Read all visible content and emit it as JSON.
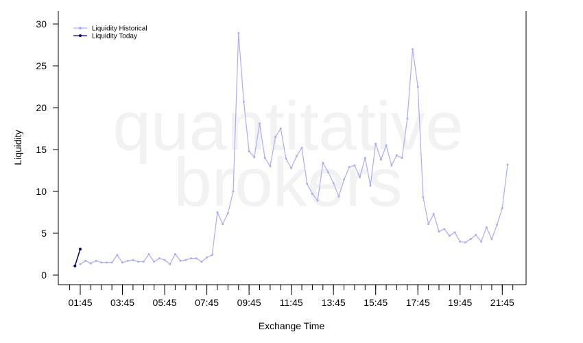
{
  "chart_data": {
    "type": "line",
    "watermark": [
      "quantitative",
      "brokers"
    ],
    "x_label": "Exchange Time",
    "y_label": "Liquidity",
    "categories": [
      "01:30",
      "01:45",
      "02:00",
      "02:15",
      "02:30",
      "02:45",
      "03:00",
      "03:15",
      "03:30",
      "03:45",
      "04:00",
      "04:15",
      "04:30",
      "04:45",
      "05:00",
      "05:15",
      "05:30",
      "05:45",
      "06:00",
      "06:15",
      "06:30",
      "06:45",
      "07:00",
      "07:15",
      "07:30",
      "07:45",
      "08:00",
      "08:15",
      "08:30",
      "08:45",
      "09:00",
      "09:15",
      "09:30",
      "09:45",
      "10:00",
      "10:15",
      "10:30",
      "10:45",
      "11:00",
      "11:15",
      "11:30",
      "11:45",
      "12:00",
      "12:15",
      "12:30",
      "12:45",
      "13:00",
      "13:15",
      "13:30",
      "13:45",
      "14:00",
      "14:15",
      "14:30",
      "14:45",
      "15:00",
      "15:15",
      "15:30",
      "15:45",
      "16:00",
      "16:15",
      "16:30",
      "16:45",
      "17:00",
      "17:15",
      "17:30",
      "17:45",
      "18:00",
      "18:15",
      "18:30",
      "18:45",
      "19:00",
      "19:15",
      "19:30",
      "19:45",
      "20:00",
      "20:15",
      "20:30",
      "20:45",
      "21:00",
      "21:15",
      "21:30",
      "21:45",
      "22:00"
    ],
    "series": [
      {
        "name": "Liquidity Historical",
        "color": "#aaaaff",
        "values": [
          null,
          1.3,
          1.7,
          1.4,
          1.7,
          1.5,
          1.5,
          1.5,
          2.4,
          1.5,
          1.7,
          1.8,
          1.6,
          1.6,
          2.5,
          1.6,
          2.0,
          1.8,
          1.3,
          2.5,
          1.7,
          1.8,
          2.0,
          2.0,
          1.6,
          2.1,
          2.4,
          7.5,
          6.1,
          7.4,
          10.0,
          28.9,
          20.7,
          14.8,
          14.1,
          18.1,
          14.0,
          13.0,
          16.5,
          17.5,
          13.9,
          12.8,
          14.2,
          15.2,
          10.9,
          9.7,
          8.9,
          13.4,
          12.3,
          11.0,
          9.4,
          11.4,
          12.9,
          13.1,
          11.7,
          14.0,
          10.7,
          15.7,
          13.8,
          15.5,
          13.1,
          14.3,
          14.0,
          18.7,
          27.0,
          22.5,
          9.3,
          6.1,
          7.3,
          5.2,
          5.5,
          4.7,
          5.1,
          4.0,
          3.9,
          4.3,
          4.8,
          4.0,
          5.7,
          4.3,
          6.0,
          8.0,
          13.2
        ]
      },
      {
        "name": "Liquidity Today",
        "color": "#000080",
        "values": [
          1.1,
          3.1,
          null,
          null,
          null,
          null,
          null,
          null,
          null,
          null,
          null,
          null,
          null,
          null,
          null,
          null,
          null,
          null,
          null,
          null,
          null,
          null,
          null,
          null,
          null,
          null,
          null,
          null,
          null,
          null,
          null,
          null,
          null,
          null,
          null,
          null,
          null,
          null,
          null,
          null,
          null,
          null,
          null,
          null,
          null,
          null,
          null,
          null,
          null,
          null,
          null,
          null,
          null,
          null,
          null,
          null,
          null,
          null,
          null,
          null,
          null,
          null,
          null,
          null,
          null,
          null,
          null,
          null,
          null,
          null,
          null,
          null,
          null,
          null,
          null,
          null,
          null,
          null,
          null,
          null,
          null,
          null,
          null
        ]
      }
    ],
    "xticks": [
      "01:45",
      "03:45",
      "05:45",
      "07:45",
      "09:45",
      "11:45",
      "13:45",
      "15:45",
      "17:45",
      "19:45",
      "21:45"
    ],
    "ylim": [
      0,
      30
    ],
    "yticks": [
      0,
      5,
      10,
      15,
      20,
      25,
      30
    ],
    "legend": "top-left"
  }
}
